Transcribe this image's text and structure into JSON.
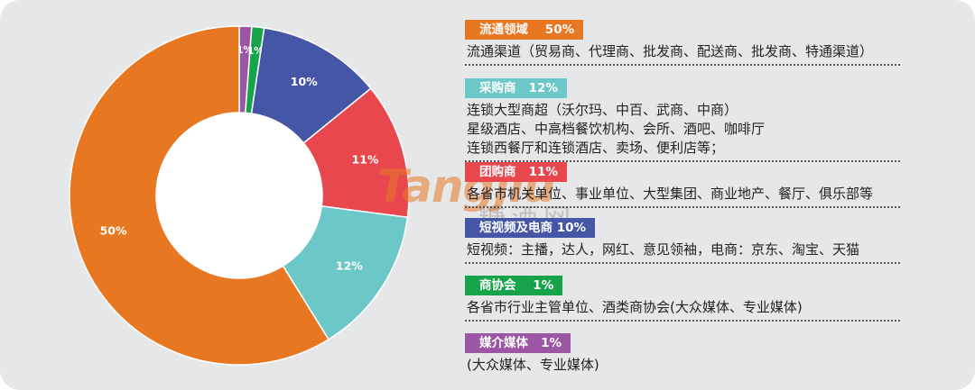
{
  "chart_data": {
    "type": "pie",
    "labels": [
      "流通领域",
      "采购商",
      "团购商",
      "短视频及电商",
      "商协会",
      "媒介媒体"
    ],
    "values": [
      50,
      12,
      11,
      10,
      1,
      1
    ],
    "value_labels": [
      "50%",
      "12%",
      "11%",
      "10%",
      "1%",
      "1%"
    ],
    "colors": [
      "#e87722",
      "#6cc7c8",
      "#e8474e",
      "#4456a5",
      "#17a34a",
      "#9b57a4"
    ],
    "donut": true
  },
  "legend": [
    {
      "tag": "流通领域    50%",
      "color": "#e87722",
      "desc": [
        "流通渠道（贸易商、代理商、批发商、配送商、批发商、特通渠道）"
      ]
    },
    {
      "tag": "采购商   12%",
      "color": "#6cc7c8",
      "desc": [
        "连锁大型商超（沃尔玛、中百、武商、中商）",
        "星级酒店、中高档餐饮机构、会所、酒吧、咖啡厅",
        "连锁西餐厅和连锁酒店、卖场、便利店等；"
      ]
    },
    {
      "tag": "团购商   11%",
      "color": "#e8474e",
      "desc": [
        "各省市机关单位、事业单位、大型集团、商业地产、餐厅、俱乐部等"
      ]
    },
    {
      "tag": "短视频及电商 10%",
      "color": "#4456a5",
      "desc": [
        "短视频：主播，达人，网红、意见领袖，电商：京东、淘宝、天猫"
      ]
    },
    {
      "tag": "商协会    1%",
      "color": "#17a34a",
      "desc": [
        "各省市行业主管单位、酒类商协会(大众媒体、专业媒体)"
      ]
    },
    {
      "tag": "媒介媒体   1%",
      "color": "#9b57a4",
      "desc": [
        "(大众媒体、专业媒体)"
      ]
    }
  ],
  "watermark": {
    "text": "Tangjiu",
    "cn": "糖酒网"
  }
}
